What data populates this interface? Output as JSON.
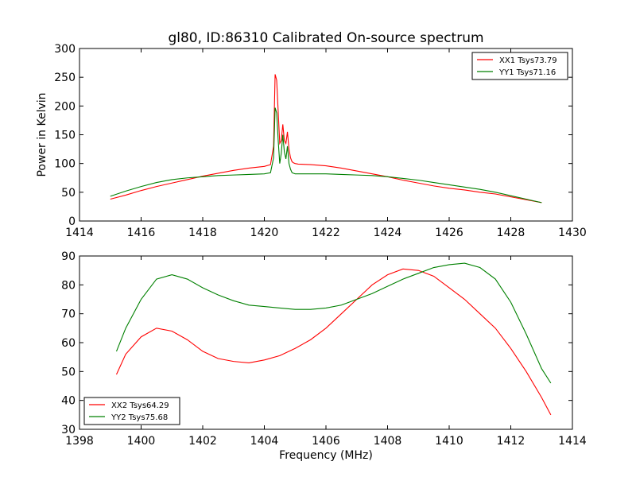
{
  "chart_data": [
    {
      "type": "line",
      "title": "gl80, ID:86310 Calibrated On-source spectrum",
      "xlabel": "",
      "ylabel": "Power in Kelvin",
      "xlim": [
        1414,
        1430
      ],
      "ylim": [
        0,
        300
      ],
      "xticks": [
        1414,
        1416,
        1418,
        1420,
        1422,
        1424,
        1426,
        1428,
        1430
      ],
      "yticks": [
        0,
        50,
        100,
        150,
        200,
        250,
        300
      ],
      "grid": false,
      "legend_position": "upper right",
      "series": [
        {
          "name": "XX1 Tsys73.79",
          "color": "#ff0000",
          "x": [
            1415.0,
            1415.5,
            1416.0,
            1416.5,
            1417.0,
            1417.5,
            1418.0,
            1418.5,
            1419.0,
            1419.5,
            1420.0,
            1420.2,
            1420.3,
            1420.35,
            1420.4,
            1420.45,
            1420.5,
            1420.55,
            1420.6,
            1420.65,
            1420.7,
            1420.75,
            1420.8,
            1420.85,
            1420.9,
            1420.95,
            1421.0,
            1421.1,
            1421.5,
            1422.0,
            1422.5,
            1423.0,
            1423.5,
            1424.0,
            1424.5,
            1425.0,
            1425.5,
            1426.0,
            1426.5,
            1427.0,
            1427.5,
            1428.0,
            1428.5,
            1429.0
          ],
          "y": [
            38,
            45,
            53,
            60,
            66,
            72,
            78,
            83,
            88,
            92,
            95,
            98,
            130,
            255,
            245,
            190,
            135,
            140,
            168,
            140,
            135,
            155,
            125,
            110,
            103,
            101,
            100,
            99,
            98,
            96,
            92,
            87,
            82,
            77,
            71,
            66,
            61,
            57,
            54,
            50,
            47,
            42,
            37,
            32
          ]
        },
        {
          "name": "YY1 Tsys71.16",
          "color": "#008000",
          "x": [
            1415.0,
            1415.5,
            1416.0,
            1416.5,
            1417.0,
            1417.5,
            1418.0,
            1418.5,
            1419.0,
            1419.5,
            1420.0,
            1420.2,
            1420.3,
            1420.35,
            1420.4,
            1420.45,
            1420.5,
            1420.55,
            1420.6,
            1420.65,
            1420.7,
            1420.75,
            1420.8,
            1420.85,
            1420.9,
            1420.95,
            1421.0,
            1421.1,
            1421.5,
            1422.0,
            1422.5,
            1423.0,
            1423.5,
            1424.0,
            1424.5,
            1425.0,
            1425.5,
            1426.0,
            1426.5,
            1427.0,
            1427.5,
            1428.0,
            1428.5,
            1429.0
          ],
          "y": [
            43,
            52,
            60,
            67,
            72,
            75,
            77,
            79,
            80,
            81,
            82,
            84,
            110,
            197,
            188,
            140,
            100,
            118,
            150,
            120,
            108,
            130,
            100,
            90,
            84,
            83,
            82,
            82,
            82,
            82,
            81,
            80,
            79,
            77,
            74,
            71,
            67,
            63,
            59,
            55,
            50,
            44,
            38,
            32
          ]
        }
      ]
    },
    {
      "type": "line",
      "title": "",
      "xlabel": "Frequency (MHz)",
      "ylabel": "",
      "xlim": [
        1398,
        1414
      ],
      "ylim": [
        30,
        90
      ],
      "xticks": [
        1398,
        1400,
        1402,
        1404,
        1406,
        1408,
        1410,
        1412,
        1414
      ],
      "yticks": [
        30,
        40,
        50,
        60,
        70,
        80,
        90
      ],
      "grid": false,
      "legend_position": "lower left",
      "series": [
        {
          "name": "XX2 Tsys64.29",
          "color": "#ff0000",
          "x": [
            1399.2,
            1399.5,
            1400.0,
            1400.5,
            1401.0,
            1401.5,
            1402.0,
            1402.5,
            1403.0,
            1403.5,
            1404.0,
            1404.5,
            1405.0,
            1405.5,
            1406.0,
            1406.5,
            1407.0,
            1407.5,
            1408.0,
            1408.5,
            1409.0,
            1409.5,
            1410.0,
            1410.5,
            1411.0,
            1411.5,
            1412.0,
            1412.5,
            1413.0,
            1413.3
          ],
          "y": [
            49,
            56,
            62,
            65,
            64,
            61,
            57,
            54.5,
            53.5,
            53,
            54,
            55.5,
            58,
            61,
            65,
            70,
            75,
            80,
            83.5,
            85.5,
            85,
            83,
            79,
            75,
            70,
            65,
            58,
            50,
            41,
            35
          ]
        },
        {
          "name": "YY2 Tsys75.68",
          "color": "#008000",
          "x": [
            1399.2,
            1399.5,
            1400.0,
            1400.5,
            1401.0,
            1401.5,
            1402.0,
            1402.5,
            1403.0,
            1403.5,
            1404.0,
            1404.5,
            1405.0,
            1405.5,
            1406.0,
            1406.5,
            1407.0,
            1407.5,
            1408.0,
            1408.5,
            1409.0,
            1409.5,
            1410.0,
            1410.5,
            1411.0,
            1411.5,
            1412.0,
            1412.5,
            1413.0,
            1413.3
          ],
          "y": [
            57,
            65,
            75,
            82,
            83.5,
            82,
            79,
            76.5,
            74.5,
            73,
            72.5,
            72,
            71.5,
            71.5,
            72,
            73,
            75,
            77,
            79.5,
            82,
            84,
            86,
            87,
            87.5,
            86,
            82,
            74,
            63,
            51,
            46
          ]
        }
      ]
    }
  ]
}
